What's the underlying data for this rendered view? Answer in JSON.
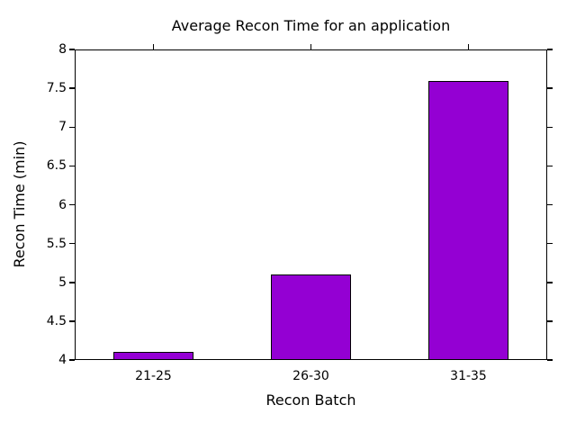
{
  "chart_data": {
    "type": "bar",
    "title": "Average Recon Time for an application",
    "xlabel": "Recon Batch",
    "ylabel": "Recon Time (min)",
    "categories": [
      "21-25",
      "26-30",
      "31-35"
    ],
    "values": [
      4.1,
      5.1,
      7.6
    ],
    "ylim": [
      4,
      8
    ],
    "yticks": [
      4,
      4.5,
      5,
      5.5,
      6,
      6.5,
      7,
      7.5,
      8
    ],
    "ytick_labels": [
      "4",
      "4.5",
      "5",
      "5.5",
      "6",
      "6.5",
      "7",
      "7.5",
      "8"
    ],
    "bar_color": "#9400D3",
    "bar_edge_color": "#000000",
    "axis_color": "#000000",
    "background_color": "#ffffff",
    "grid": false,
    "legend_position": "none"
  }
}
